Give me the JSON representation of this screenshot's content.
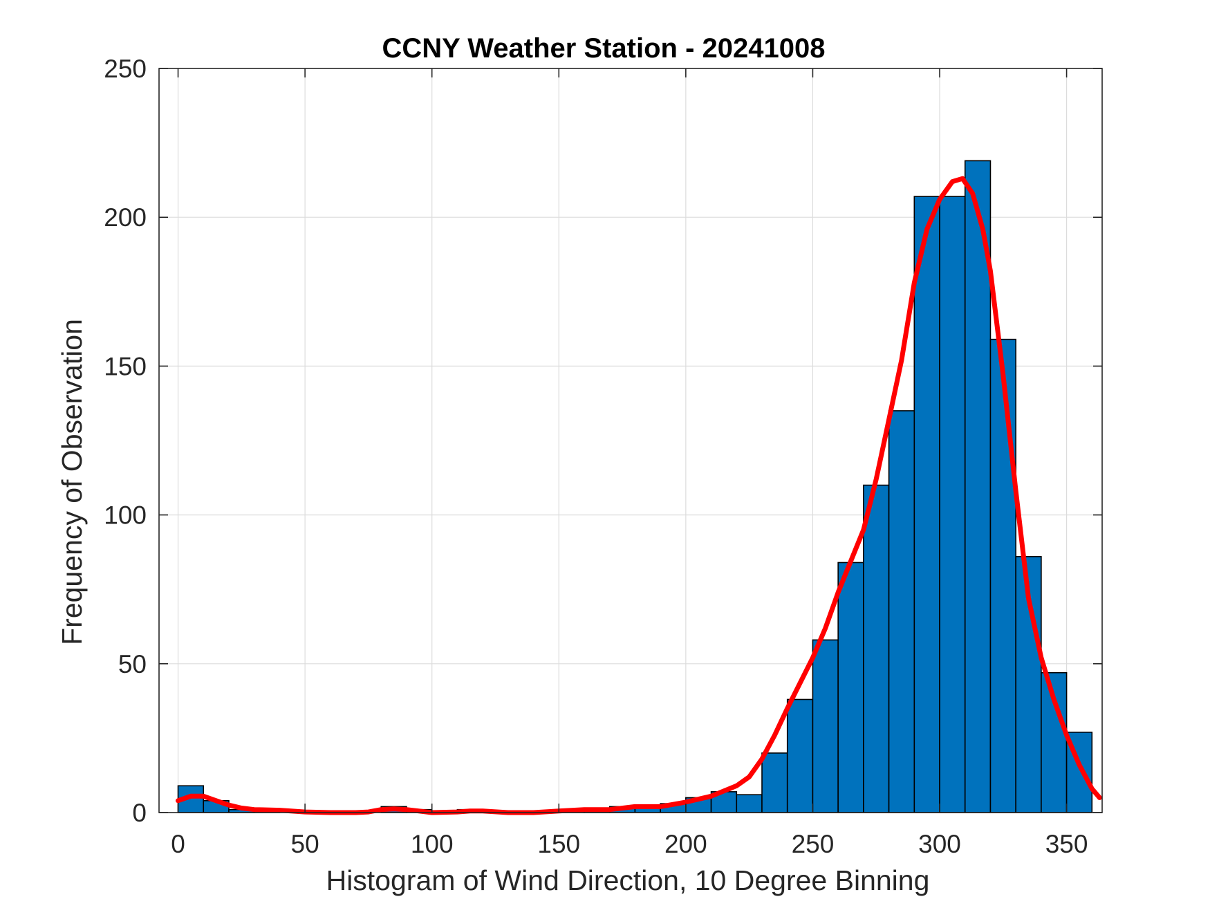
{
  "chart_data": {
    "type": "bar",
    "title": "CCNY Weather Station - 20241008",
    "xlabel": "Histogram of Wind Direction, 10 Degree Binning",
    "ylabel": "Frequency of Observation",
    "xlim": [
      -7.5,
      364
    ],
    "ylim": [
      0,
      250
    ],
    "xticks": [
      0,
      50,
      100,
      150,
      200,
      250,
      300,
      350
    ],
    "yticks": [
      0,
      50,
      100,
      150,
      200,
      250
    ],
    "grid": true,
    "bin_width": 10,
    "bins": [
      {
        "start": 0,
        "count": 9
      },
      {
        "start": 10,
        "count": 4
      },
      {
        "start": 20,
        "count": 1
      },
      {
        "start": 30,
        "count": 1
      },
      {
        "start": 40,
        "count": 0
      },
      {
        "start": 50,
        "count": 0
      },
      {
        "start": 60,
        "count": 0
      },
      {
        "start": 70,
        "count": 0
      },
      {
        "start": 80,
        "count": 2
      },
      {
        "start": 90,
        "count": 1
      },
      {
        "start": 100,
        "count": 0
      },
      {
        "start": 110,
        "count": 1
      },
      {
        "start": 120,
        "count": 0
      },
      {
        "start": 130,
        "count": 0
      },
      {
        "start": 140,
        "count": 0
      },
      {
        "start": 150,
        "count": 1
      },
      {
        "start": 160,
        "count": 1
      },
      {
        "start": 170,
        "count": 2
      },
      {
        "start": 180,
        "count": 2
      },
      {
        "start": 190,
        "count": 3
      },
      {
        "start": 200,
        "count": 5
      },
      {
        "start": 210,
        "count": 7
      },
      {
        "start": 220,
        "count": 6
      },
      {
        "start": 230,
        "count": 20
      },
      {
        "start": 240,
        "count": 38
      },
      {
        "start": 250,
        "count": 58
      },
      {
        "start": 260,
        "count": 84
      },
      {
        "start": 270,
        "count": 110
      },
      {
        "start": 280,
        "count": 135
      },
      {
        "start": 290,
        "count": 207
      },
      {
        "start": 300,
        "count": 207
      },
      {
        "start": 310,
        "count": 219
      },
      {
        "start": 320,
        "count": 159
      },
      {
        "start": 330,
        "count": 86
      },
      {
        "start": 340,
        "count": 47
      },
      {
        "start": 350,
        "count": 27
      }
    ],
    "fit_curve": {
      "color": "#FF0000",
      "points": [
        [
          0,
          4
        ],
        [
          5,
          5.5
        ],
        [
          10,
          5.5
        ],
        [
          15,
          4
        ],
        [
          20,
          2.5
        ],
        [
          25,
          1.5
        ],
        [
          30,
          1
        ],
        [
          40,
          0.8
        ],
        [
          50,
          0.2
        ],
        [
          60,
          0
        ],
        [
          70,
          0
        ],
        [
          75,
          0.2
        ],
        [
          80,
          1
        ],
        [
          85,
          1.2
        ],
        [
          90,
          1
        ],
        [
          100,
          0
        ],
        [
          110,
          0.2
        ],
        [
          115,
          0.5
        ],
        [
          120,
          0.5
        ],
        [
          130,
          0
        ],
        [
          140,
          0
        ],
        [
          150,
          0.5
        ],
        [
          160,
          1
        ],
        [
          170,
          1
        ],
        [
          180,
          2
        ],
        [
          190,
          2
        ],
        [
          200,
          3.5
        ],
        [
          210,
          5.5
        ],
        [
          220,
          9
        ],
        [
          225,
          12
        ],
        [
          230,
          18
        ],
        [
          235,
          26
        ],
        [
          240,
          35
        ],
        [
          250,
          52
        ],
        [
          255,
          62
        ],
        [
          260,
          74
        ],
        [
          270,
          95
        ],
        [
          275,
          112
        ],
        [
          280,
          132
        ],
        [
          285,
          152
        ],
        [
          290,
          178
        ],
        [
          295,
          196
        ],
        [
          300,
          206
        ],
        [
          305,
          212
        ],
        [
          309,
          213
        ],
        [
          313,
          208
        ],
        [
          317,
          196
        ],
        [
          320,
          182
        ],
        [
          325,
          147
        ],
        [
          330,
          108
        ],
        [
          335,
          72
        ],
        [
          340,
          52
        ],
        [
          345,
          38
        ],
        [
          350,
          26
        ],
        [
          355,
          16
        ],
        [
          360,
          8
        ],
        [
          363,
          5
        ]
      ]
    },
    "colors": {
      "bar_fill": "#0072BD",
      "bar_edge": "#000000",
      "fit_line": "#FF0000"
    }
  }
}
